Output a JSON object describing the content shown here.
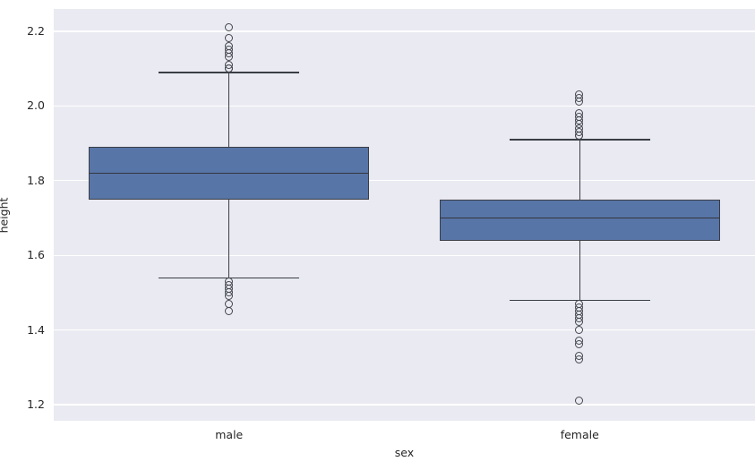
{
  "chart_data": {
    "type": "boxplot",
    "title": "",
    "xlabel": "sex",
    "ylabel": "height",
    "categories": [
      "male",
      "female"
    ],
    "ylim": [
      1.157,
      2.26
    ],
    "yticks": [
      1.2,
      1.4,
      1.6,
      1.8,
      2.0,
      2.2
    ],
    "ytick_labels": [
      "1.2",
      "1.4",
      "1.6",
      "1.8",
      "2.0",
      "2.2"
    ],
    "grid": true,
    "legend": "none",
    "series": [
      {
        "name": "male",
        "whisker_low": 1.54,
        "q1": 1.75,
        "median": 1.82,
        "q3": 1.89,
        "whisker_high": 2.09,
        "outliers_high": [
          2.1,
          2.1,
          2.11,
          2.13,
          2.14,
          2.15,
          2.16,
          2.18,
          2.21
        ],
        "outliers_low": [
          1.53,
          1.52,
          1.51,
          1.5,
          1.49,
          1.47,
          1.45
        ]
      },
      {
        "name": "female",
        "whisker_low": 1.48,
        "q1": 1.64,
        "median": 1.7,
        "q3": 1.75,
        "whisker_high": 1.91,
        "outliers_high": [
          1.92,
          1.92,
          1.93,
          1.94,
          1.95,
          1.96,
          1.97,
          1.98,
          2.01,
          2.02,
          2.03
        ],
        "outliers_low": [
          1.47,
          1.46,
          1.45,
          1.44,
          1.43,
          1.42,
          1.4,
          1.37,
          1.36,
          1.33,
          1.32,
          1.21
        ]
      }
    ],
    "colors": {
      "axes_bg": "#EAEAF2",
      "figure_bg": "#FFFFFF",
      "grid": "#FFFFFF",
      "box_fill": "#5875A7",
      "line": "#3A3E45",
      "text": "#262626"
    }
  }
}
